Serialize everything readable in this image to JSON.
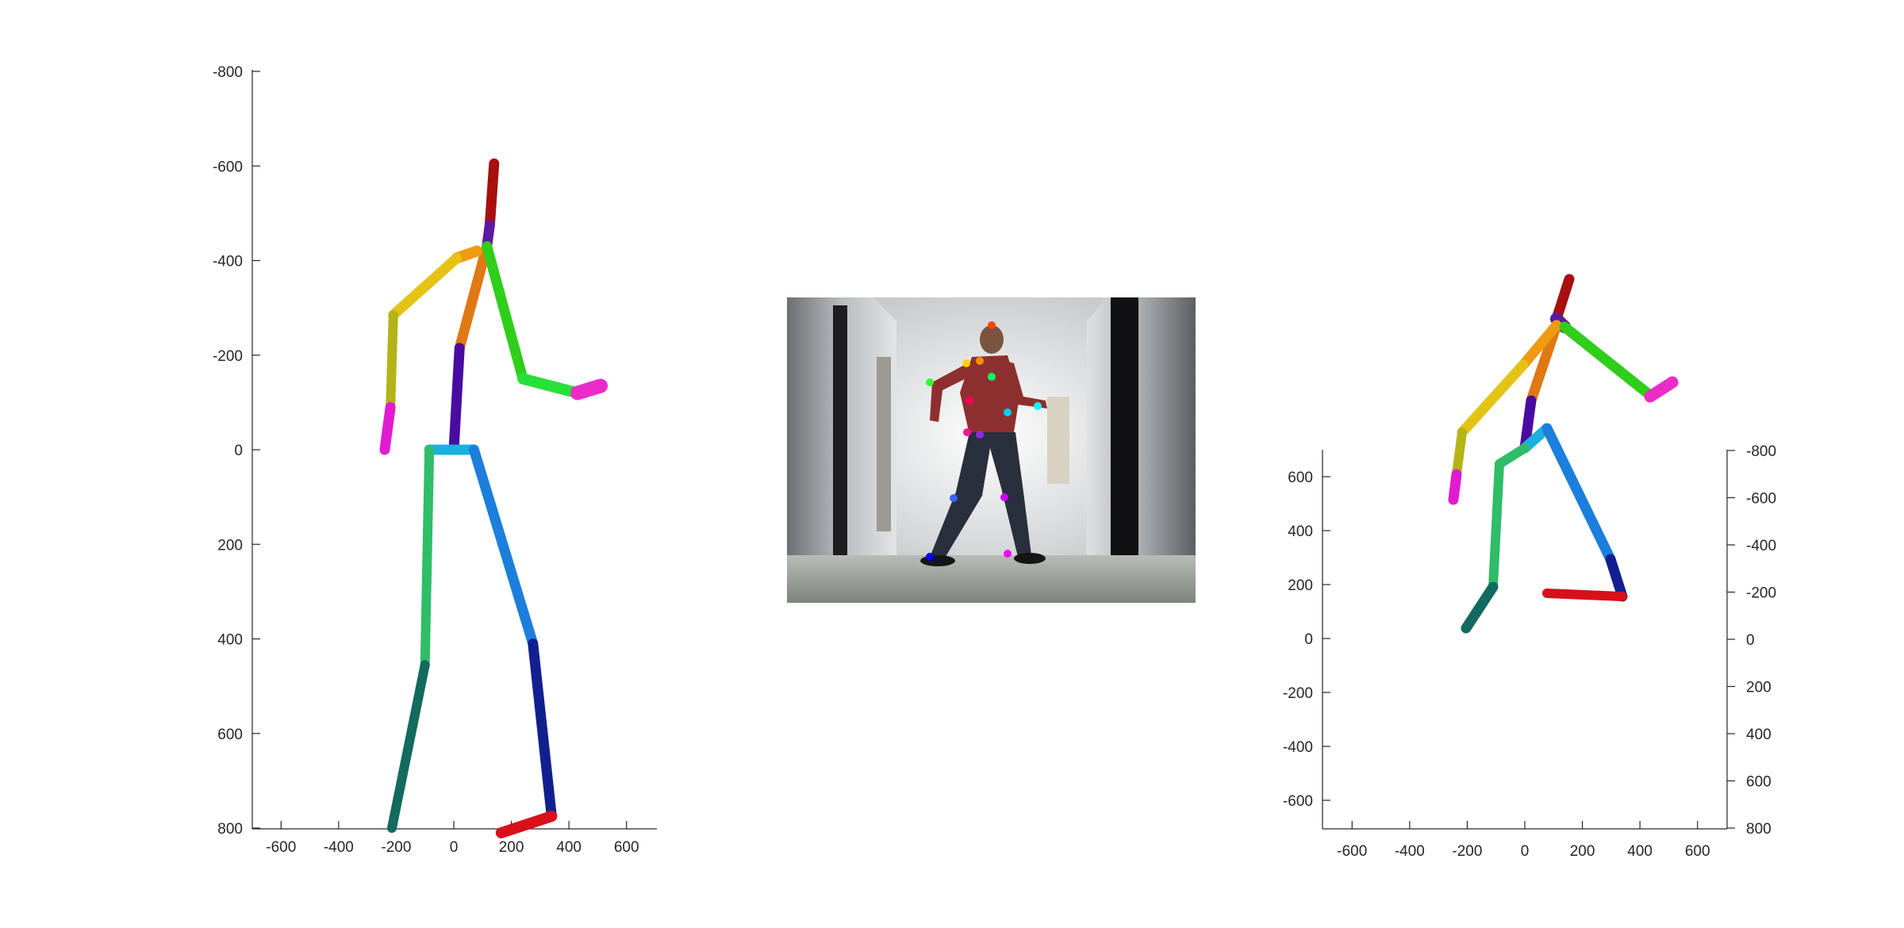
{
  "figure": {
    "background": "#ffffff",
    "axis_color": "#262626"
  },
  "chart_data": [
    {
      "type": "scatter",
      "panel": "left-3d-pose-side-view",
      "description_of_marks": "3D skeleton rendered as colored limb cylinders",
      "x_ticks": [
        "-600",
        "-400",
        "-200",
        "0",
        "200",
        "400",
        "600"
      ],
      "y_ticks": [
        "-800",
        "-600",
        "-400",
        "-200",
        "0",
        "200",
        "400",
        "600",
        "800"
      ],
      "xlim": [
        -650,
        650
      ],
      "ylim": [
        -800,
        800
      ],
      "y_reversed": true,
      "joints": {
        "head_top": [
          140,
          -605
        ],
        "neck": [
          115,
          -430
        ],
        "neck_top": [
          125,
          -475
        ],
        "thorax": [
          80,
          -420
        ],
        "l_shoulder": [
          10,
          -405
        ],
        "l_elbow": [
          -210,
          -285
        ],
        "l_wrist": [
          -220,
          -90
        ],
        "l_hand": [
          -240,
          0
        ],
        "r_elbow": [
          240,
          -150
        ],
        "r_wrist": [
          430,
          -120
        ],
        "r_hand": [
          510,
          -135
        ],
        "spine_top": [
          20,
          -215
        ],
        "pelvis": [
          0,
          0
        ],
        "l_hip": [
          -85,
          0
        ],
        "l_knee": [
          -100,
          455
        ],
        "l_ankle": [
          -215,
          800
        ],
        "r_hip": [
          70,
          0
        ],
        "r_knee": [
          275,
          410
        ],
        "r_ankle": [
          340,
          775
        ],
        "r_toe": [
          165,
          810
        ]
      }
    },
    {
      "type": "scatter",
      "panel": "right-3d-pose-oblique-view",
      "x_ticks": [
        "-600",
        "-400",
        "-200",
        "0",
        "200",
        "400",
        "600"
      ],
      "y_ticks_left": [
        "600",
        "400",
        "200",
        "0",
        "-200",
        "-400",
        "-600"
      ],
      "y_ticks_right": [
        "-800",
        "-600",
        "-400",
        "-200",
        "0",
        "200",
        "400",
        "600",
        "800"
      ],
      "xlim": [
        -700,
        700
      ],
      "ylim": [
        -700,
        700
      ]
    }
  ],
  "photo": {
    "panel": "center-input-image",
    "keypoint_colors": [
      "#ff4500",
      "#ffd400",
      "#ff8c00",
      "#33ff33",
      "#00ff66",
      "#00ffff",
      "#00ccff",
      "#ff0055",
      "#ff1493",
      "#3366ff",
      "#8a2be2",
      "#0000ff",
      "#ff00ff",
      "#cc00ff"
    ]
  }
}
